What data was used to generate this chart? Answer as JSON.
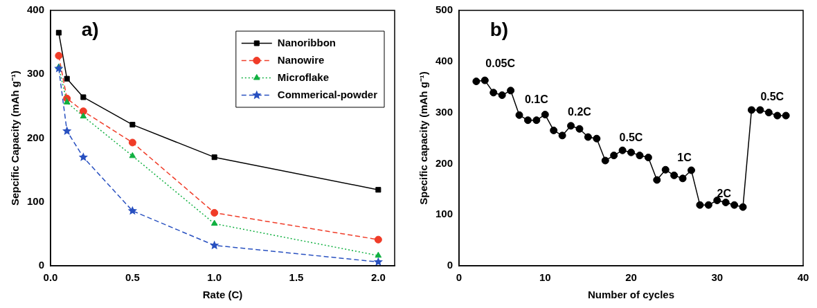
{
  "chart_data": [
    {
      "type": "line",
      "xlabel": "Rate (C)",
      "ylabel": "Sepcific Capacity (mAh g⁻¹)",
      "annotations": [
        "a)"
      ],
      "x": [
        0.05,
        0.1,
        0.2,
        0.5,
        1,
        2
      ],
      "xlim": [
        0,
        2.1
      ],
      "xticks": [
        {
          "value": 0,
          "label": "0.0"
        },
        {
          "value": 0.5,
          "label": "0.5"
        },
        {
          "value": 1,
          "label": "1.0"
        },
        {
          "value": 1.5,
          "label": "1.5"
        },
        {
          "value": 2,
          "label": "2.0"
        }
      ],
      "ylim": [
        0,
        400
      ],
      "yticks": [
        0,
        100,
        200,
        300,
        400
      ],
      "grid": false,
      "legend": "top right",
      "series": [
        {
          "name": "Nanoribbon",
          "color": "#000000",
          "marker": "square",
          "line_style": "solid",
          "values": [
            365,
            293,
            264,
            221,
            170,
            119
          ]
        },
        {
          "name": "Nanowire",
          "color": "#f03c28",
          "marker": "circle",
          "line_style": "dashed",
          "values": [
            329,
            262,
            242,
            193,
            83,
            41
          ]
        },
        {
          "name": "Microflake",
          "color": "#10b040",
          "marker": "triangle",
          "line_style": "dotted",
          "values": [
            311,
            256,
            234,
            172,
            66,
            16
          ]
        },
        {
          "name": "Commerical-powder",
          "color": "#2850c0",
          "marker": "star",
          "line_style": "dashed",
          "values": [
            309,
            211,
            170,
            86,
            32,
            6
          ]
        }
      ]
    },
    {
      "type": "line",
      "xlabel": "Number of cycles",
      "ylabel": "Specific capacity (mAh g⁻¹)",
      "x": [
        2,
        3,
        4,
        5,
        6,
        7,
        8,
        9,
        10,
        11,
        12,
        13,
        14,
        15,
        16,
        17,
        18,
        19,
        20,
        21,
        22,
        23,
        24,
        25,
        26,
        27,
        28,
        29,
        30,
        31,
        32,
        33,
        34,
        35,
        36,
        37,
        38
      ],
      "annotations": [
        "b)",
        "0.05C",
        "0.1C",
        "0.2C",
        "0.5C",
        "1C",
        "2C",
        "0.5C"
      ],
      "xlim": [
        0,
        40
      ],
      "xticks": [
        0,
        10,
        20,
        30,
        40
      ],
      "ylim": [
        0,
        500
      ],
      "yticks": [
        0,
        100,
        200,
        300,
        400,
        500
      ],
      "grid": false,
      "marker": "circle",
      "line_style": "solid",
      "series": [
        {
          "color": "#000000",
          "values": [
            361,
            363,
            339,
            334,
            343,
            295,
            285,
            285,
            296,
            265,
            255,
            274,
            268,
            252,
            249,
            206,
            216,
            226,
            222,
            216,
            212,
            168,
            188,
            177,
            171,
            187,
            119,
            119,
            128,
            124,
            119,
            115,
            305,
            305,
            300,
            294,
            294
          ]
        }
      ]
    }
  ]
}
